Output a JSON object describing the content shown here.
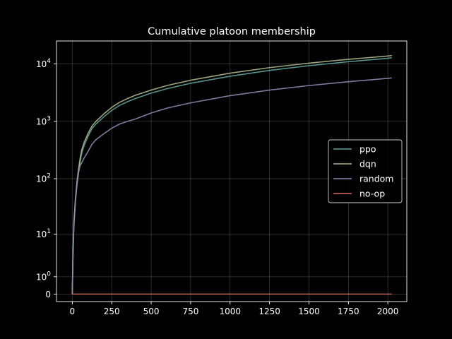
{
  "chart_data": {
    "type": "line",
    "title": "Cumulative platoon membership",
    "xlabel": "",
    "ylabel": "",
    "yscale": "symlog",
    "xlim": [
      -100,
      2120
    ],
    "ylim": [
      -0.35,
      25000
    ],
    "xticks": [
      0,
      250,
      500,
      750,
      1000,
      1250,
      1500,
      1750,
      2000
    ],
    "xtick_labels": [
      "0",
      "250",
      "500",
      "750",
      "1000",
      "1250",
      "1500",
      "1750",
      "2000"
    ],
    "yticks": [
      0,
      1,
      10,
      100,
      1000,
      10000
    ],
    "ytick_labels": [
      "0",
      "10^0",
      "10^1",
      "10^2",
      "10^3",
      "10^4"
    ],
    "grid": true,
    "legend_position": "center-right",
    "series": [
      {
        "name": "ppo",
        "color": "#5fa39a",
        "x": [
          0,
          5,
          10,
          20,
          30,
          40,
          50,
          60,
          75,
          100,
          125,
          150,
          200,
          250,
          300,
          350,
          400,
          500,
          600,
          750,
          1000,
          1250,
          1500,
          1750,
          2000,
          2025
        ],
        "y": [
          0,
          5,
          15,
          40,
          80,
          130,
          200,
          280,
          380,
          550,
          750,
          900,
          1200,
          1550,
          1900,
          2200,
          2500,
          3100,
          3700,
          4600,
          6100,
          7700,
          9300,
          10900,
          12500,
          12800
        ]
      },
      {
        "name": "dqn",
        "color": "#aab887",
        "x": [
          0,
          5,
          10,
          20,
          30,
          40,
          50,
          60,
          75,
          100,
          125,
          150,
          200,
          250,
          300,
          350,
          400,
          500,
          600,
          750,
          1000,
          1250,
          1500,
          1750,
          2000,
          2025
        ],
        "y": [
          0,
          5,
          16,
          45,
          90,
          150,
          230,
          320,
          430,
          620,
          830,
          1000,
          1350,
          1750,
          2150,
          2500,
          2850,
          3500,
          4200,
          5200,
          6900,
          8600,
          10300,
          12000,
          13700,
          14000
        ]
      },
      {
        "name": "random",
        "color": "#8a8ab0",
        "x": [
          0,
          5,
          10,
          20,
          30,
          40,
          50,
          60,
          75,
          100,
          125,
          150,
          200,
          250,
          300,
          350,
          400,
          500,
          600,
          750,
          1000,
          1250,
          1500,
          1750,
          2000,
          2025
        ],
        "y": [
          0,
          4,
          13,
          40,
          80,
          130,
          170,
          190,
          230,
          300,
          400,
          480,
          610,
          760,
          900,
          1000,
          1100,
          1400,
          1700,
          2100,
          2800,
          3500,
          4200,
          4900,
          5600,
          5700
        ]
      },
      {
        "name": "no-op",
        "color": "#d9695a",
        "x": [
          0,
          2025
        ],
        "y": [
          0,
          0
        ]
      }
    ]
  }
}
